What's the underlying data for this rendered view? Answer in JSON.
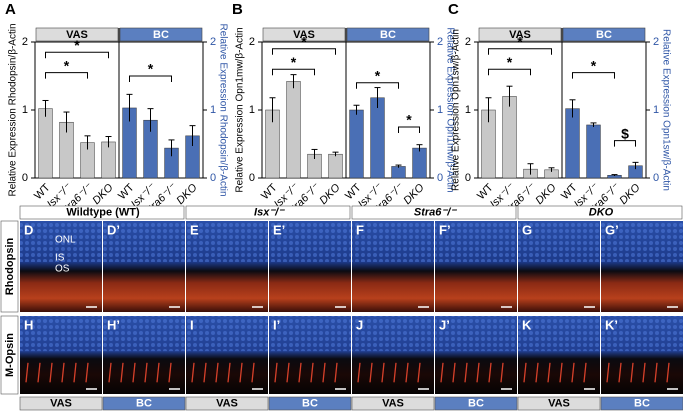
{
  "chart_data": [
    {
      "type": "bar",
      "panel": "A",
      "ylabel": "Relative Expression Rhodopsin/β-Actin",
      "y2label": "Relative Expression Rhodopsin/β-Actin",
      "ylim": [
        0,
        2
      ],
      "yticks": [
        0,
        1,
        2
      ],
      "y2lim": [
        0,
        2
      ],
      "y2ticks": [
        0,
        1,
        2
      ],
      "groups": [
        {
          "name": "VAS",
          "color": "#c8c8c8",
          "header_color": "#dcdcdc",
          "categories": [
            "WT",
            "Isx⁻/⁻",
            "Stra6⁻/⁻",
            "DKO"
          ],
          "values": [
            1.02,
            0.82,
            0.52,
            0.53
          ],
          "errors": [
            0.12,
            0.15,
            0.1,
            0.08
          ]
        },
        {
          "name": "BC",
          "color": "#4a6fb5",
          "header_color": "#5b7fc0",
          "categories": [
            "WT",
            "Isx⁻/⁻",
            "Stra6⁻/⁻",
            "DKO"
          ],
          "values": [
            1.03,
            0.85,
            0.44,
            0.62
          ],
          "errors": [
            0.2,
            0.17,
            0.12,
            0.15
          ]
        }
      ],
      "annotations": [
        {
          "text": "*"
        },
        {
          "text": "*"
        },
        {
          "text": "*"
        }
      ]
    },
    {
      "type": "bar",
      "panel": "B",
      "ylabel": "Relative Expression Opn1mw/β-Actin",
      "y2label": "Relative Expression Opn1mw/β-Actin",
      "ylim": [
        0,
        2
      ],
      "yticks": [
        0,
        1,
        2
      ],
      "y2lim": [
        0,
        2
      ],
      "y2ticks": [
        0,
        1,
        2
      ],
      "groups": [
        {
          "name": "VAS",
          "color": "#c8c8c8",
          "header_color": "#dcdcdc",
          "categories": [
            "WT",
            "Isx⁻/⁻",
            "Stra6⁻/⁻",
            "DKO"
          ],
          "values": [
            1.0,
            1.42,
            0.35,
            0.35
          ],
          "errors": [
            0.18,
            0.1,
            0.07,
            0.03
          ]
        },
        {
          "name": "BC",
          "color": "#4a6fb5",
          "header_color": "#5b7fc0",
          "categories": [
            "WT",
            "Isx⁻/⁻",
            "Stra6⁻/⁻",
            "DKO"
          ],
          "values": [
            1.0,
            1.18,
            0.17,
            0.44
          ],
          "errors": [
            0.07,
            0.15,
            0.02,
            0.05
          ]
        }
      ],
      "annotations": [
        {
          "text": "*"
        },
        {
          "text": "*"
        },
        {
          "text": "*"
        },
        {
          "text": "*"
        }
      ]
    },
    {
      "type": "bar",
      "panel": "C",
      "ylabel": "Relative Expression Opn1sw/β-Actin",
      "y2label": "Relative Expression Opn1sw/β-Actin",
      "ylim": [
        0,
        2
      ],
      "yticks": [
        0,
        1,
        2
      ],
      "y2lim": [
        0,
        2
      ],
      "y2ticks": [
        0,
        1,
        2
      ],
      "groups": [
        {
          "name": "VAS",
          "color": "#c8c8c8",
          "header_color": "#dcdcdc",
          "categories": [
            "WT",
            "Isx⁻/⁻",
            "Stra6⁻/⁻",
            "DKO"
          ],
          "values": [
            1.0,
            1.2,
            0.13,
            0.12
          ],
          "errors": [
            0.18,
            0.15,
            0.08,
            0.03
          ]
        },
        {
          "name": "BC",
          "color": "#4a6fb5",
          "header_color": "#5b7fc0",
          "categories": [
            "WT",
            "Isx⁻/⁻",
            "Stra6⁻/⁻",
            "DKO"
          ],
          "values": [
            1.02,
            0.78,
            0.04,
            0.18
          ],
          "errors": [
            0.13,
            0.03,
            0.01,
            0.05
          ]
        }
      ],
      "annotations": [
        {
          "text": "*"
        },
        {
          "text": "*"
        },
        {
          "text": "*"
        },
        {
          "text": "$"
        }
      ]
    }
  ],
  "micrographs": {
    "columns": [
      "Wildtype (WT)",
      "Isx⁻/⁻",
      "Stra6⁻/⁻",
      "DKO"
    ],
    "rows": [
      "Rhodopsin",
      "M-Opsin"
    ],
    "panels": [
      [
        "D",
        "D’",
        "E",
        "E’",
        "F",
        "F’",
        "G",
        "G’"
      ],
      [
        "H",
        "H’",
        "I",
        "I’",
        "J",
        "J’",
        "K",
        "K’"
      ]
    ],
    "layers": [
      "ONL",
      "IS",
      "OS"
    ],
    "conditions": [
      "VAS",
      "BC",
      "VAS",
      "BC",
      "VAS",
      "BC",
      "VAS",
      "BC"
    ]
  }
}
